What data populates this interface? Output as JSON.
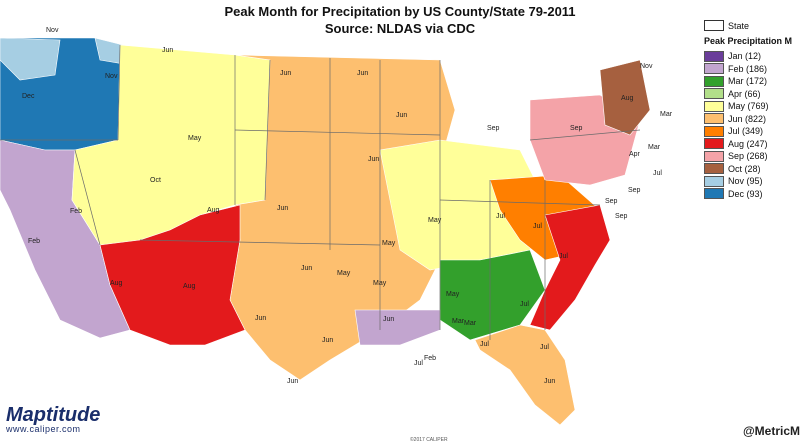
{
  "title": "Peak Month for Precipitation by US County/State 79-2011",
  "source": "Source:  NLDAS via CDC",
  "legend": {
    "state_label": "State",
    "heading": "Peak Precipitation M",
    "items": [
      {
        "label": "Jan (12)",
        "color": "#6a3d9a"
      },
      {
        "label": "Feb (186)",
        "color": "#c2a5cf"
      },
      {
        "label": "Mar (172)",
        "color": "#33a02c"
      },
      {
        "label": "Apr (66)",
        "color": "#b2df8a"
      },
      {
        "label": "May (769)",
        "color": "#ffff99"
      },
      {
        "label": "Jun (822)",
        "color": "#fdbf6f"
      },
      {
        "label": "Jul (349)",
        "color": "#ff7f00"
      },
      {
        "label": "Aug (247)",
        "color": "#e31a1c"
      },
      {
        "label": "Sep (268)",
        "color": "#f4a3a8"
      },
      {
        "label": "Oct (28)",
        "color": "#a6603f"
      },
      {
        "label": "Nov (95)",
        "color": "#a6cee3"
      },
      {
        "label": "Dec (93)",
        "color": "#1f78b4"
      }
    ]
  },
  "regions": [
    {
      "name": "region-pacific-nw-dec",
      "month": "Dec",
      "color": "#1f78b4"
    },
    {
      "name": "region-nov-north",
      "month": "Nov",
      "color": "#a6cee3"
    },
    {
      "name": "region-california-feb",
      "month": "Feb",
      "color": "#c2a5cf"
    },
    {
      "name": "region-mountain-may",
      "month": "May",
      "color": "#ffff99"
    },
    {
      "name": "region-plains-jun",
      "month": "Jun",
      "color": "#fdbf6f"
    },
    {
      "name": "region-southwest-aug",
      "month": "Aug",
      "color": "#e31a1c"
    },
    {
      "name": "region-midwest-may",
      "month": "May",
      "color": "#ffff99"
    },
    {
      "name": "region-southeast-mar",
      "month": "Mar",
      "color": "#33a02c"
    },
    {
      "name": "region-gulf-feb",
      "month": "Feb",
      "color": "#c2a5cf"
    },
    {
      "name": "region-appalachia-jul",
      "month": "Jul",
      "color": "#ff7f00"
    },
    {
      "name": "region-atlantic-aug",
      "month": "Aug",
      "color": "#e31a1c"
    },
    {
      "name": "region-northeast-sep",
      "month": "Sep",
      "color": "#f4a3a8"
    },
    {
      "name": "region-new-england-oct",
      "month": "Oct",
      "color": "#a6603f"
    },
    {
      "name": "region-florida-jun",
      "month": "Jun",
      "color": "#fdbf6f"
    }
  ],
  "map_labels": [
    {
      "text": "Nov"
    },
    {
      "text": "Dec"
    },
    {
      "text": "Nov"
    },
    {
      "text": "Feb"
    },
    {
      "text": "Feb"
    },
    {
      "text": "Jun"
    },
    {
      "text": "Jun"
    },
    {
      "text": "Jun"
    },
    {
      "text": "May"
    },
    {
      "text": "Oct"
    },
    {
      "text": "Aug"
    },
    {
      "text": "Aug"
    },
    {
      "text": "Aug"
    },
    {
      "text": "Jun"
    },
    {
      "text": "Jun"
    },
    {
      "text": "Jun"
    },
    {
      "text": "Jun"
    },
    {
      "text": "Jun"
    },
    {
      "text": "May"
    },
    {
      "text": "May"
    },
    {
      "text": "May"
    },
    {
      "text": "May"
    },
    {
      "text": "May"
    },
    {
      "text": "Jul"
    },
    {
      "text": "Sep"
    },
    {
      "text": "Sep"
    },
    {
      "text": "Sep"
    },
    {
      "text": "Jul"
    },
    {
      "text": "Jul"
    },
    {
      "text": "Jul"
    },
    {
      "text": "Jun"
    },
    {
      "text": "Mar"
    },
    {
      "text": "Feb"
    },
    {
      "text": "Jul"
    },
    {
      "text": "Jul"
    },
    {
      "text": "Jul"
    },
    {
      "text": "Jun"
    },
    {
      "text": "Jun"
    },
    {
      "text": "Jun"
    },
    {
      "text": "Nov"
    },
    {
      "text": "Aug"
    },
    {
      "text": "Mar"
    },
    {
      "text": "Apr"
    },
    {
      "text": "Mar"
    },
    {
      "text": "Jul"
    },
    {
      "text": "Sep"
    },
    {
      "text": "Sep"
    },
    {
      "text": "Mar"
    }
  ],
  "branding": {
    "name": "Maptitude",
    "url": "www.caliper.com"
  },
  "handle": "@MetricM",
  "copyright": "©2017 CALIPER"
}
